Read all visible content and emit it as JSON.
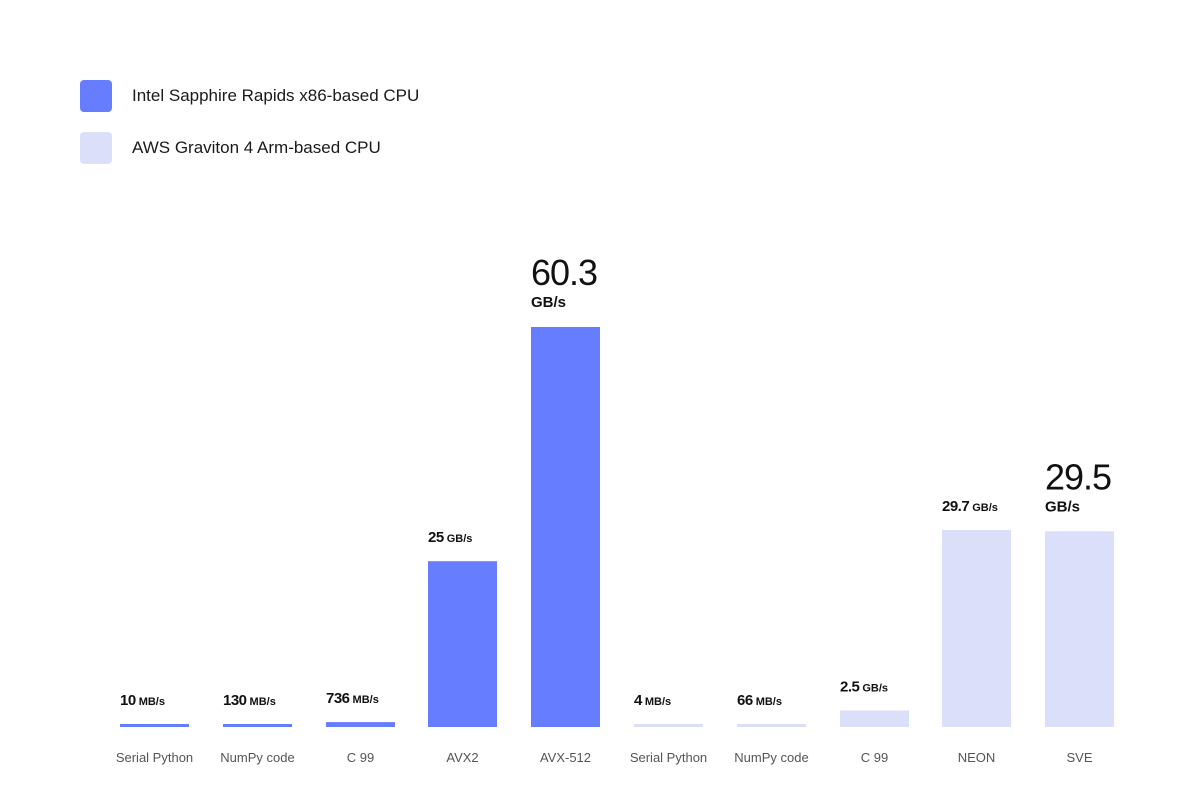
{
  "chart_data": {
    "type": "bar",
    "title": "",
    "xlabel": "",
    "ylabel": "",
    "ylim": [
      0,
      60.3
    ],
    "grid": false,
    "legend_position": "top-left",
    "legend": [
      {
        "label": "Intel Sapphire Rapids x86-based CPU",
        "color": "#667dff"
      },
      {
        "label": "AWS Graviton 4 Arm-based CPU",
        "color": "#dbdffa"
      }
    ],
    "bars": [
      {
        "category": "Serial Python",
        "series": 0,
        "value_gbps": 0.01,
        "label_value": "10",
        "label_unit": "MB/s",
        "emphasis": false
      },
      {
        "category": "NumPy code",
        "series": 0,
        "value_gbps": 0.13,
        "label_value": "130",
        "label_unit": "MB/s",
        "emphasis": false
      },
      {
        "category": "C 99",
        "series": 0,
        "value_gbps": 0.736,
        "label_value": "736",
        "label_unit": "MB/s",
        "emphasis": false
      },
      {
        "category": "AVX2",
        "series": 0,
        "value_gbps": 25,
        "label_value": "25",
        "label_unit": "GB/s",
        "emphasis": false
      },
      {
        "category": "AVX-512",
        "series": 0,
        "value_gbps": 60.3,
        "label_value": "60.3",
        "label_unit": "GB/s",
        "emphasis": true
      },
      {
        "category": "Serial Python",
        "series": 1,
        "value_gbps": 0.004,
        "label_value": "4",
        "label_unit": "MB/s",
        "emphasis": false
      },
      {
        "category": "NumPy code",
        "series": 1,
        "value_gbps": 0.066,
        "label_value": "66",
        "label_unit": "MB/s",
        "emphasis": false
      },
      {
        "category": "C 99",
        "series": 1,
        "value_gbps": 2.5,
        "label_value": "2.5",
        "label_unit": "GB/s",
        "emphasis": false
      },
      {
        "category": "NEON",
        "series": 1,
        "value_gbps": 29.7,
        "label_value": "29.7",
        "label_unit": "GB/s",
        "emphasis": false
      },
      {
        "category": "SVE",
        "series": 1,
        "value_gbps": 29.5,
        "label_value": "29.5",
        "label_unit": "GB/s",
        "emphasis": true
      }
    ]
  }
}
